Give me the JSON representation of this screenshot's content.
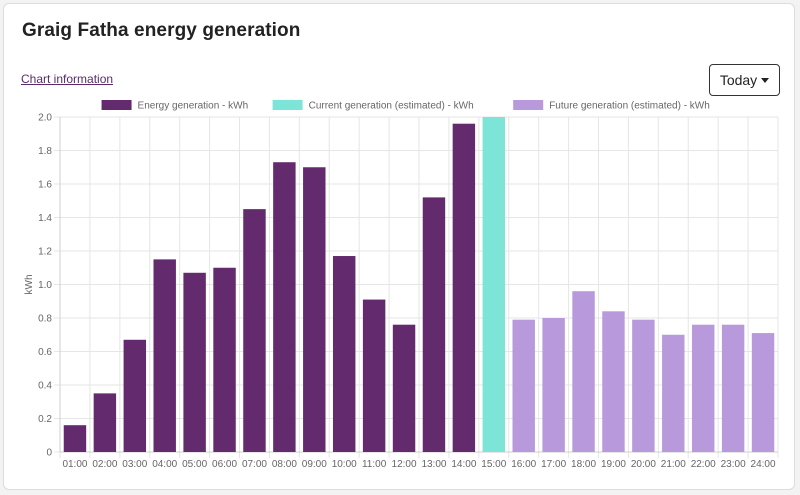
{
  "header": {
    "title": "Graig Fatha energy generation",
    "chart_info_link": "Chart information",
    "range_button": "Today"
  },
  "colors": {
    "energy": "#632a6e",
    "current": "#7de5d8",
    "future": "#b899dc",
    "grid": "#e6e6e6",
    "axis_text": "#666666"
  },
  "chart_data": {
    "type": "bar",
    "ylabel": "kWh",
    "ylim": [
      0,
      2.0
    ],
    "yticks": [
      "0",
      "0.2",
      "0.4",
      "0.6",
      "0.8",
      "1.0",
      "1.2",
      "1.4",
      "1.6",
      "1.8",
      "2.0"
    ],
    "grid": true,
    "legend_position": "top-center",
    "categories": [
      "01:00",
      "02:00",
      "03:00",
      "04:00",
      "05:00",
      "06:00",
      "07:00",
      "08:00",
      "09:00",
      "10:00",
      "11:00",
      "12:00",
      "13:00",
      "14:00",
      "15:00",
      "16:00",
      "17:00",
      "18:00",
      "19:00",
      "20:00",
      "21:00",
      "22:00",
      "23:00",
      "24:00"
    ],
    "series": [
      {
        "name": "Energy generation - kWh",
        "color_key": "energy",
        "values": [
          0.16,
          0.35,
          0.67,
          1.15,
          1.07,
          1.1,
          1.45,
          1.73,
          1.7,
          1.17,
          0.91,
          0.76,
          1.52,
          1.96,
          null,
          null,
          null,
          null,
          null,
          null,
          null,
          null,
          null,
          null
        ]
      },
      {
        "name": "Current generation (estimated) - kWh",
        "color_key": "current",
        "values": [
          null,
          null,
          null,
          null,
          null,
          null,
          null,
          null,
          null,
          null,
          null,
          null,
          null,
          null,
          2.0,
          null,
          null,
          null,
          null,
          null,
          null,
          null,
          null,
          null
        ]
      },
      {
        "name": "Future generation (estimated) - kWh",
        "color_key": "future",
        "values": [
          null,
          null,
          null,
          null,
          null,
          null,
          null,
          null,
          null,
          null,
          null,
          null,
          null,
          null,
          null,
          0.79,
          0.8,
          0.96,
          0.84,
          0.79,
          0.7,
          0.76,
          0.76,
          0.71
        ]
      }
    ]
  }
}
